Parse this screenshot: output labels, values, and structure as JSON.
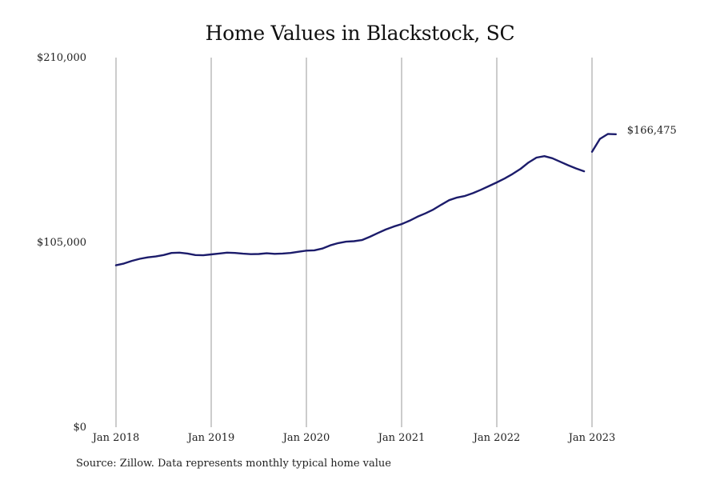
{
  "chart_data": {
    "type": "line",
    "title": "Home Values in Blackstock, SC",
    "xlabel": "",
    "ylabel": "",
    "ylim": [
      0,
      210000
    ],
    "y_ticks": [
      0,
      105000,
      210000
    ],
    "y_tick_labels": [
      "$0",
      "$105,000",
      "$210,000"
    ],
    "x_ticks": [
      "2018-01",
      "2019-01",
      "2020-01",
      "2021-01",
      "2022-01",
      "2023-01"
    ],
    "x_tick_labels": [
      "Jan 2018",
      "Jan 2019",
      "Jan 2020",
      "Jan 2021",
      "Jan 2022",
      "Jan 2023"
    ],
    "xlim": [
      "2018-01",
      "2023-05"
    ],
    "grid": "vertical lines at x ticks",
    "legend": "none",
    "line_color": "#1c1c6b",
    "series": [
      {
        "segments": [
          {
            "x": [
              "2018-01",
              "2018-02",
              "2018-03",
              "2018-04",
              "2018-05",
              "2018-06",
              "2018-07",
              "2018-08",
              "2018-09",
              "2018-10",
              "2018-11",
              "2018-12",
              "2019-01",
              "2019-02",
              "2019-03",
              "2019-04",
              "2019-05",
              "2019-06",
              "2019-07",
              "2019-08",
              "2019-09",
              "2019-10",
              "2019-11",
              "2019-12",
              "2020-01",
              "2020-02",
              "2020-03",
              "2020-04",
              "2020-05",
              "2020-06",
              "2020-07",
              "2020-08",
              "2020-09",
              "2020-10",
              "2020-11",
              "2020-12",
              "2021-01",
              "2021-02",
              "2021-03",
              "2021-04",
              "2021-05",
              "2021-06",
              "2021-07",
              "2021-08",
              "2021-09",
              "2021-10",
              "2021-11",
              "2021-12",
              "2022-01",
              "2022-02",
              "2022-03",
              "2022-04",
              "2022-05",
              "2022-06",
              "2022-07",
              "2022-08",
              "2022-09",
              "2022-10",
              "2022-11",
              "2022-12"
            ],
            "y": [
              92000,
              93000,
              94500,
              95700,
              96500,
              97000,
              97800,
              99000,
              99200,
              98700,
              97800,
              97700,
              98200,
              98700,
              99200,
              99000,
              98600,
              98300,
              98400,
              98800,
              98500,
              98700,
              99000,
              99700,
              100300,
              100500,
              101500,
              103300,
              104600,
              105400,
              105700,
              106300,
              108200,
              110300,
              112300,
              114000,
              115400,
              117300,
              119600,
              121500,
              123700,
              126400,
              129000,
              130500,
              131400,
              133000,
              134900,
              137000,
              139100,
              141300,
              143900,
              146800,
              150400,
              153200,
              154000,
              152800,
              150800,
              148800,
              147000,
              145400
            ]
          },
          {
            "x": [
              "2023-01",
              "2023-02",
              "2023-03",
              "2023-04"
            ],
            "y": [
              156500,
              163800,
              166600,
              166475
            ]
          }
        ]
      }
    ],
    "annotations": [
      {
        "x": "2023-04",
        "y": 166475,
        "text": "$166,475"
      }
    ],
    "source": "Source: Zillow. Data represents monthly typical home value"
  }
}
